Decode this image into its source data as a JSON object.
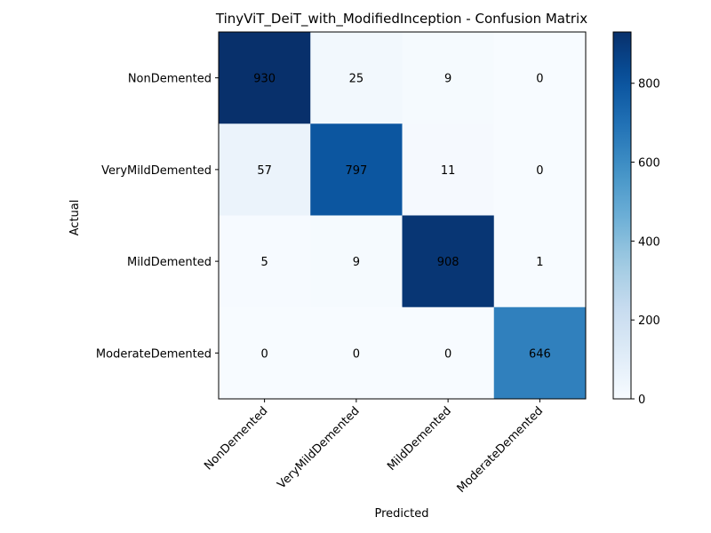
{
  "chart_data": {
    "type": "heatmap",
    "title": "TinyViT_DeiT_with_ModifiedInception - Confusion Matrix",
    "xlabel": "Predicted",
    "ylabel": "Actual",
    "x_categories": [
      "NonDemented",
      "VeryMildDemented",
      "MildDemented",
      "ModerateDemented"
    ],
    "y_categories": [
      "NonDemented",
      "VeryMildDemented",
      "MildDemented",
      "ModerateDemented"
    ],
    "values": [
      [
        930,
        25,
        9,
        0
      ],
      [
        57,
        797,
        11,
        0
      ],
      [
        5,
        9,
        908,
        1
      ],
      [
        0,
        0,
        0,
        646
      ]
    ],
    "colormap": "Blues",
    "colorbar": {
      "range": [
        0,
        930
      ],
      "ticks": [
        0,
        200,
        400,
        600,
        800
      ]
    },
    "colors": {
      "low": "#f7fbff",
      "high": "#08306b",
      "text": "#000000"
    }
  }
}
